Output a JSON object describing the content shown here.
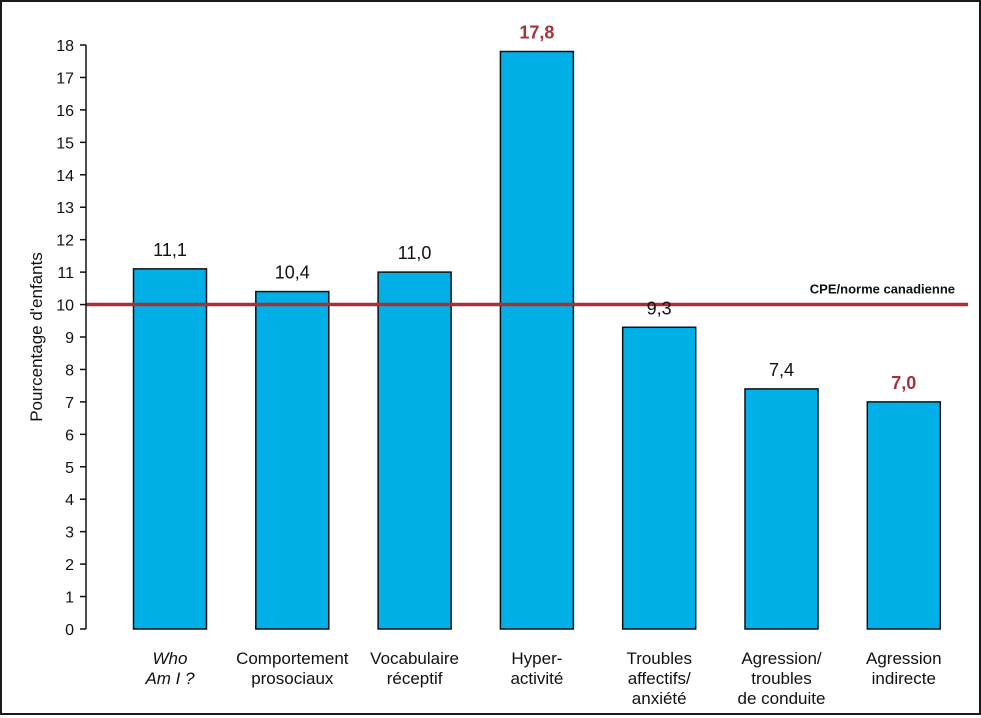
{
  "chart_data": {
    "type": "bar",
    "ylabel": "Pourcentage d'enfants",
    "xlabel": "",
    "title": "",
    "ylim": [
      0,
      18
    ],
    "yticks": [
      0,
      1,
      2,
      3,
      4,
      5,
      6,
      7,
      8,
      9,
      10,
      11,
      12,
      13,
      14,
      15,
      16,
      17,
      18
    ],
    "grid": false,
    "categories": [
      [
        "Who",
        "Am I ?"
      ],
      [
        "Comportement",
        "prosociaux"
      ],
      [
        "Vocabulaire",
        "réceptif"
      ],
      [
        "Hyper-",
        "activité"
      ],
      [
        "Troubles",
        "affectifs/",
        "anxiété"
      ],
      [
        "Agression/",
        "troubles",
        "de conduite"
      ],
      [
        "Agression",
        "indirecte"
      ]
    ],
    "italic_categories": [
      0
    ],
    "values": [
      11.1,
      10.4,
      11.0,
      17.8,
      9.3,
      7.4,
      7.0
    ],
    "value_labels": [
      "11,1",
      "10,4",
      "11,0",
      "17,8",
      "9,3",
      "7,4",
      "7,0"
    ],
    "highlighted_labels": [
      3,
      6
    ],
    "reference_line": {
      "value": 10,
      "label": "CPE/norme canadienne",
      "color": "#a5313a"
    },
    "colors": {
      "bar": "#00b0e6",
      "highlight_text": "#a5313a"
    }
  }
}
